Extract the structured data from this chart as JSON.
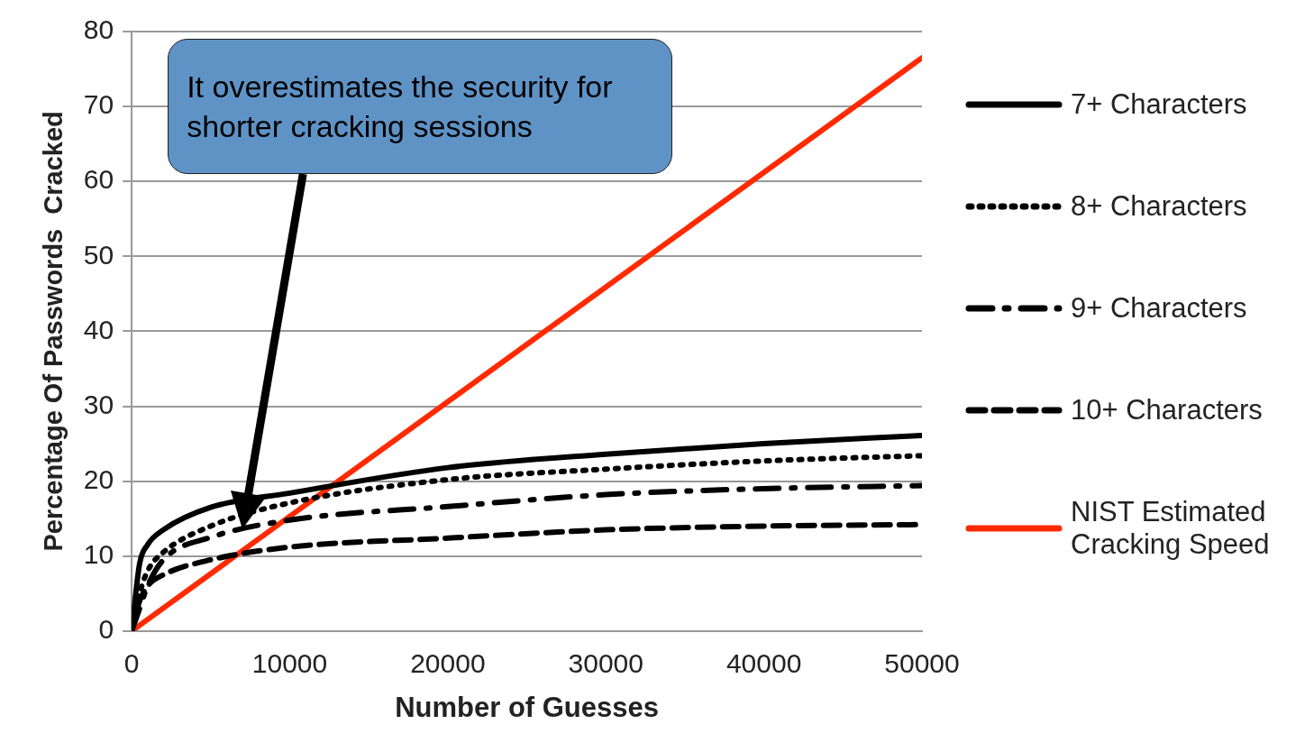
{
  "chart_data": {
    "type": "line",
    "xlabel": "Number of Guesses",
    "ylabel": "Percentage Of Passwords  Cracked",
    "x": [
      0,
      500,
      1000,
      2000,
      5000,
      10000,
      20000,
      30000,
      40000,
      50000
    ],
    "series": [
      {
        "name": "7+ Characters",
        "color": "#000000",
        "line_style": "solid",
        "values": [
          0,
          9,
          11.5,
          13.5,
          16.5,
          18.4,
          21.8,
          23.6,
          25,
          26.1
        ]
      },
      {
        "name": "8+ Characters",
        "color": "#000000",
        "line_style": "dotted",
        "values": [
          0,
          5,
          8,
          10.5,
          14,
          17.1,
          20.2,
          21.6,
          22.7,
          23.4
        ]
      },
      {
        "name": "9+ Characters",
        "color": "#000000",
        "line_style": "dashdot",
        "values": [
          0,
          3,
          6,
          9.5,
          12.5,
          14.8,
          16.6,
          18.2,
          19,
          19.4
        ]
      },
      {
        "name": "10+ Characters",
        "color": "#000000",
        "line_style": "dashed",
        "values": [
          0,
          4,
          6,
          7.5,
          9.5,
          11.2,
          12.4,
          13.5,
          14,
          14.2
        ]
      },
      {
        "name": "NIST Estimated Cracking Speed",
        "color": "#ff2a00",
        "line_style": "solid",
        "x": [
          0,
          50000
        ],
        "values": [
          0,
          76.5
        ]
      }
    ],
    "xlim": [
      0,
      50000
    ],
    "xticks": [
      0,
      10000,
      20000,
      30000,
      40000,
      50000
    ],
    "ylim": [
      0,
      80
    ],
    "yticks": [
      0,
      10,
      20,
      30,
      40,
      50,
      60,
      70,
      80
    ],
    "grid": "y",
    "legend": "right",
    "marker": "none",
    "annotations": [
      "It overestimates the security for shorter cracking sessions"
    ]
  }
}
